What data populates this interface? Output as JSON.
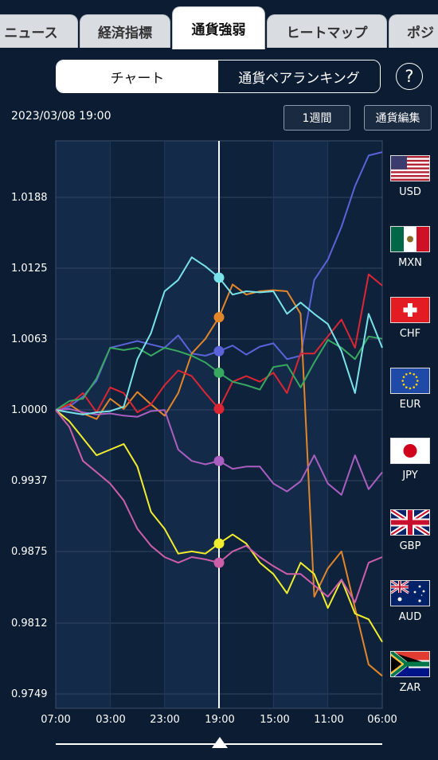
{
  "tabs": [
    {
      "label": "ニュース",
      "active": false
    },
    {
      "label": "経済指標",
      "active": false
    },
    {
      "label": "通貨強弱",
      "active": true
    },
    {
      "label": "ヒートマップ",
      "active": false
    },
    {
      "label": "ポジ",
      "active": false
    }
  ],
  "segment": {
    "chart_label": "チャート",
    "ranking_label": "通貨ペアランキング"
  },
  "help_label": "?",
  "timestamp": "2023/03/08 19:00",
  "period_button": "1週間",
  "edit_button": "通貨編集",
  "chart_data": {
    "type": "line",
    "y_ticks": [
      "1.0188",
      "1.0125",
      "1.0063",
      "1.0000",
      "0.9937",
      "0.9875",
      "0.9812",
      "0.9749"
    ],
    "x_ticks": [
      "07:00",
      "03:00",
      "23:00",
      "19:00",
      "15:00",
      "11:00",
      "06:00"
    ],
    "ylim": [
      0.9749,
      1.025
    ],
    "grid": true,
    "cursor_label": "19:00",
    "series": [
      {
        "name": "USD",
        "color": "#5a63d8",
        "values": [
          1.0,
          1.0003,
          1.0012,
          1.0026,
          1.0055,
          1.0058,
          1.0061,
          1.0058,
          1.0055,
          1.0066,
          1.005,
          1.0048,
          1.0052,
          1.0057,
          1.0049,
          1.0056,
          1.0059,
          1.0045,
          1.0048,
          1.0115,
          1.0133,
          1.0162,
          1.0198,
          1.0225,
          1.0228
        ]
      },
      {
        "name": "MXN",
        "color": "#e2862a",
        "values": [
          1.0,
          1.0005,
          0.9997,
          0.9992,
          1.001,
          1.0001,
          1.0016,
          1.0005,
          0.9995,
          1.0015,
          1.005,
          1.0063,
          1.0082,
          1.0111,
          1.0102,
          1.0105,
          1.0106,
          1.0105,
          1.0085,
          0.9835,
          0.986,
          0.9875,
          0.9825,
          0.9775,
          0.9765
        ]
      },
      {
        "name": "CHF",
        "color": "#dd2633",
        "values": [
          1.0,
          1.0005,
          1.0015,
          0.9998,
          1.002,
          1.0015,
          0.9998,
          1.0005,
          1.0022,
          1.0035,
          1.003,
          1.0015,
          1.0001,
          1.0025,
          1.003,
          1.0025,
          1.0033,
          1.0015,
          1.005,
          1.005,
          1.0065,
          1.008,
          1.0055,
          1.012,
          1.011
        ]
      },
      {
        "name": "EUR",
        "color": "#38a861",
        "values": [
          1.0,
          1.0008,
          1.001,
          1.0028,
          1.0055,
          1.0053,
          1.0055,
          1.0048,
          1.0055,
          1.0052,
          1.0048,
          1.0042,
          1.0033,
          1.0025,
          1.0022,
          1.0018,
          1.0038,
          1.004,
          1.002,
          1.0042,
          1.0062,
          1.0055,
          1.0045,
          1.0065,
          1.0063
        ]
      },
      {
        "name": "JPY",
        "color": "#aa5fc0",
        "values": [
          1.0,
          1.0001,
          0.9998,
          0.9996,
          0.9997,
          0.9995,
          0.9994,
          0.9999,
          1.0,
          0.9965,
          0.9955,
          0.9952,
          0.9955,
          0.9948,
          0.995,
          0.995,
          0.9935,
          0.9928,
          0.9937,
          0.996,
          0.9935,
          0.9925,
          0.996,
          0.993,
          0.9945
        ]
      },
      {
        "name": "GBP",
        "color": "#f0ec2e",
        "values": [
          1.0,
          0.999,
          0.9975,
          0.996,
          0.9965,
          0.997,
          0.995,
          0.991,
          0.9895,
          0.9873,
          0.9875,
          0.9873,
          0.9882,
          0.989,
          0.9882,
          0.9865,
          0.9855,
          0.9838,
          0.9865,
          0.9855,
          0.9825,
          0.985,
          0.982,
          0.9815,
          0.9795
        ]
      },
      {
        "name": "AUD",
        "color": "#79e3ea",
        "values": [
          1.0,
          0.9998,
          0.9996,
          0.9998,
          0.9999,
          1.0003,
          1.0045,
          1.0068,
          1.0105,
          1.0115,
          1.0135,
          1.0127,
          1.0117,
          1.0102,
          1.0105,
          1.0104,
          1.0105,
          1.0085,
          1.0095,
          1.0085,
          1.0076,
          1.0052,
          1.0015,
          1.0085,
          1.0055
        ]
      },
      {
        "name": "ZAR",
        "color": "#cc5fa8",
        "values": [
          1.0,
          0.9985,
          0.9955,
          0.9945,
          0.9935,
          0.992,
          0.9895,
          0.988,
          0.987,
          0.9865,
          0.987,
          0.9868,
          0.9865,
          0.9875,
          0.988,
          0.987,
          0.9862,
          0.9855,
          0.9855,
          0.9845,
          0.9835,
          0.985,
          0.983,
          0.9865,
          0.987
        ]
      }
    ]
  },
  "currencies": [
    {
      "code": "USD",
      "flag_icon": "us-flag-icon"
    },
    {
      "code": "MXN",
      "flag_icon": "mexico-flag-icon"
    },
    {
      "code": "CHF",
      "flag_icon": "swiss-flag-icon"
    },
    {
      "code": "EUR",
      "flag_icon": "eu-flag-icon"
    },
    {
      "code": "JPY",
      "flag_icon": "japan-flag-icon"
    },
    {
      "code": "GBP",
      "flag_icon": "uk-flag-icon"
    },
    {
      "code": "AUD",
      "flag_icon": "australia-flag-icon"
    },
    {
      "code": "ZAR",
      "flag_icon": "south-africa-flag-icon"
    }
  ]
}
